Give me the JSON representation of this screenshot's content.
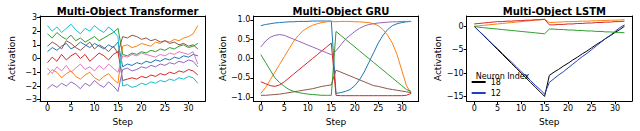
{
  "chart_data": [
    {
      "type": "line",
      "title": "Multi-Object Transformer",
      "x_label": "Step",
      "y_label": "Activation",
      "grid": false,
      "x": [
        0,
        1,
        2,
        3,
        4,
        5,
        6,
        7,
        8,
        9,
        10,
        11,
        12,
        13,
        14,
        15,
        16,
        17,
        18,
        19,
        20,
        21,
        22,
        23,
        24,
        25,
        26,
        27,
        28,
        29,
        30,
        31,
        32
      ],
      "xlim": [
        -1.6,
        33.6
      ],
      "xticks": [
        0,
        5,
        10,
        15,
        20,
        25,
        30
      ],
      "ylim": [
        -3.1,
        3.1
      ],
      "yticks": [
        {
          "value": -3,
          "label": "−3"
        },
        {
          "value": -2,
          "label": "−2"
        },
        {
          "value": -1,
          "label": "−1"
        },
        0,
        1,
        2,
        3
      ],
      "series": [
        {
          "color": "#1f77b4",
          "values": [
            0.5,
            0.8,
            0.6,
            0.9,
            1.1,
            0.7,
            0.9,
            1.2,
            1.0,
            0.8,
            1.1,
            0.9,
            0.7,
            1.0,
            0.8,
            1.2,
            -0.6,
            -0.4,
            -0.5,
            -0.3,
            -0.4,
            -0.2,
            -0.3,
            -0.1,
            -0.2,
            0.0,
            -0.1,
            0.1,
            0.0,
            0.2,
            0.1,
            0.3,
            0.2
          ]
        },
        {
          "color": "#ff7f0e",
          "values": [
            -1.2,
            -0.8,
            -1.0,
            -1.4,
            -1.1,
            -0.9,
            -1.3,
            -1.5,
            -1.2,
            -1.0,
            -1.4,
            -1.6,
            -1.3,
            -1.1,
            -1.5,
            -1.8,
            0.9,
            1.0,
            0.8,
            0.9,
            1.1,
            1.0,
            0.9,
            1.2,
            1.1,
            1.3,
            1.2,
            1.4,
            1.3,
            1.5,
            1.6,
            1.8,
            2.4
          ]
        },
        {
          "color": "#2ca02c",
          "values": [
            1.8,
            1.5,
            1.9,
            1.6,
            1.4,
            1.7,
            1.3,
            1.5,
            1.2,
            1.4,
            1.6,
            1.3,
            1.5,
            1.7,
            1.9,
            2.2,
            0.3,
            0.2,
            0.4,
            0.3,
            0.5,
            0.4,
            0.6,
            0.5,
            0.7,
            0.6,
            0.8,
            0.7,
            0.9,
            1.0,
            0.8,
            0.9,
            1.1
          ]
        },
        {
          "color": "#d62728",
          "values": [
            -0.3,
            0.1,
            -0.2,
            0.3,
            -0.1,
            0.2,
            0.4,
            0.0,
            0.3,
            -0.2,
            0.1,
            0.4,
            0.2,
            -0.1,
            0.3,
            0.5,
            -1.6,
            -1.5,
            -1.4,
            -1.5,
            -1.3,
            -1.4,
            -1.2,
            -1.3,
            -1.1,
            -1.2,
            -1.0,
            -1.1,
            -0.9,
            -1.0,
            -0.8,
            -0.9,
            -1.2
          ]
        },
        {
          "color": "#9467bd",
          "values": [
            -2.2,
            -1.9,
            -2.1,
            -1.8,
            -2.0,
            -1.7,
            -1.9,
            -2.2,
            -1.8,
            -2.0,
            -1.6,
            -1.9,
            -2.1,
            -1.7,
            -2.0,
            -2.4,
            -0.8,
            -0.7,
            -0.9,
            -0.8,
            -0.6,
            -0.7,
            -0.5,
            -0.6,
            -0.4,
            -0.5,
            -0.3,
            -0.4,
            -0.2,
            -0.3,
            -0.1,
            -0.2,
            -0.6
          ]
        },
        {
          "color": "#8c564b",
          "values": [
            0.9,
            1.2,
            1.0,
            0.7,
            1.3,
            1.1,
            0.8,
            0.6,
            0.9,
            1.2,
            0.7,
            1.0,
            0.8,
            0.5,
            0.9,
            0.4,
            1.6,
            1.5,
            1.7,
            1.6,
            1.4,
            1.5,
            1.3,
            1.4,
            1.2,
            1.3,
            1.1,
            1.2,
            1.0,
            1.1,
            0.9,
            1.0,
            0.7
          ]
        },
        {
          "color": "#e377c2",
          "values": [
            -0.7,
            -1.1,
            -0.6,
            -0.9,
            -0.5,
            -1.0,
            -0.7,
            -0.4,
            -0.8,
            -0.6,
            -0.9,
            -0.5,
            -0.8,
            -0.4,
            -0.7,
            -1.0,
            0.2,
            0.1,
            0.3,
            0.2,
            0.4,
            0.3,
            0.2,
            0.1,
            0.3,
            0.2,
            0.4,
            0.3,
            0.5,
            0.4,
            0.3,
            0.5,
            -0.4
          ]
        },
        {
          "color": "#17becf",
          "values": [
            2.4,
            2.0,
            2.3,
            1.9,
            2.2,
            2.5,
            2.1,
            1.8,
            2.2,
            2.0,
            2.4,
            2.1,
            1.9,
            2.3,
            2.0,
            1.6,
            -2.0,
            -1.9,
            -2.1,
            -2.0,
            -1.8,
            -1.9,
            -1.7,
            -1.8,
            -1.6,
            -1.7,
            -1.5,
            -1.6,
            -1.4,
            -1.5,
            -1.3,
            -1.4,
            -1.8
          ]
        }
      ]
    },
    {
      "type": "line",
      "title": "Multi-Object GRU",
      "x_label": "Step",
      "y_label": "Activation",
      "grid": false,
      "x": [
        0,
        1,
        2,
        3,
        4,
        5,
        6,
        7,
        8,
        9,
        10,
        11,
        12,
        13,
        14,
        15,
        16,
        17,
        18,
        19,
        20,
        21,
        22,
        23,
        24,
        25,
        26,
        27,
        28,
        29,
        30,
        31,
        32
      ],
      "xlim": [
        -1.6,
        33.6
      ],
      "xticks": [
        0,
        5,
        10,
        15,
        20,
        25,
        30
      ],
      "ylim": [
        -1.1,
        1.1
      ],
      "yticks": [
        {
          "value": -1,
          "label": "−1.0"
        },
        {
          "value": -0.5,
          "label": "−0.5"
        },
        {
          "value": 0,
          "label": "0.0"
        },
        {
          "value": 0.5,
          "label": "0.5"
        },
        {
          "value": 1,
          "label": "1.0"
        }
      ],
      "series": [
        {
          "color": "#1f77b4",
          "values": [
            0.85,
            0.88,
            0.9,
            0.92,
            0.93,
            0.94,
            0.95,
            0.95,
            0.96,
            0.96,
            0.96,
            0.97,
            0.97,
            0.97,
            0.97,
            0.97,
            -0.9,
            -0.88,
            -0.85,
            -0.8,
            -0.7,
            -0.55,
            -0.35,
            -0.1,
            0.15,
            0.4,
            0.6,
            0.75,
            0.85,
            0.9,
            0.93,
            0.95,
            0.96
          ]
        },
        {
          "color": "#ff7f0e",
          "values": [
            -0.9,
            -0.75,
            -0.55,
            -0.35,
            -0.15,
            0.05,
            0.25,
            0.45,
            0.6,
            0.72,
            0.8,
            0.86,
            0.9,
            0.93,
            0.95,
            0.96,
            0.95,
            0.96,
            0.96,
            0.96,
            0.95,
            0.95,
            0.94,
            0.93,
            0.9,
            0.85,
            0.75,
            0.6,
            0.4,
            0.1,
            -0.3,
            -0.7,
            -0.9
          ]
        },
        {
          "color": "#2ca02c",
          "values": [
            0.1,
            -0.1,
            -0.3,
            -0.5,
            -0.62,
            -0.72,
            -0.8,
            -0.85,
            -0.88,
            -0.9,
            -0.92,
            -0.93,
            -0.94,
            -0.95,
            -0.95,
            -0.95,
            0.7,
            0.6,
            0.5,
            0.4,
            0.3,
            0.2,
            0.1,
            0.0,
            -0.1,
            -0.2,
            -0.3,
            -0.4,
            -0.5,
            -0.6,
            -0.7,
            -0.8,
            -0.85
          ]
        },
        {
          "color": "#d62728",
          "values": [
            -0.6,
            -0.65,
            -0.7,
            -0.72,
            -0.68,
            -0.6,
            -0.5,
            -0.4,
            -0.3,
            -0.2,
            -0.1,
            0.0,
            0.1,
            0.2,
            0.3,
            0.4,
            -0.95,
            -0.96,
            -0.96,
            -0.96,
            -0.96,
            -0.96,
            -0.96,
            -0.96,
            -0.96,
            -0.96,
            -0.96,
            -0.96,
            -0.96,
            -0.96,
            -0.96,
            -0.95,
            -0.9
          ]
        },
        {
          "color": "#9467bd",
          "values": [
            0.3,
            0.45,
            0.55,
            0.6,
            0.62,
            0.6,
            0.55,
            0.5,
            0.45,
            0.4,
            0.35,
            0.3,
            0.25,
            0.2,
            0.15,
            0.1,
            0.2,
            0.35,
            0.5,
            0.6,
            0.7,
            0.78,
            0.84,
            0.88,
            0.9,
            0.92,
            0.93,
            0.94,
            0.95,
            0.95,
            0.96,
            0.96,
            0.96
          ]
        },
        {
          "color": "#8c564b",
          "values": [
            -0.95,
            -0.95,
            -0.94,
            -0.93,
            -0.92,
            -0.9,
            -0.88,
            -0.86,
            -0.84,
            -0.82,
            -0.8,
            -0.78,
            -0.75,
            -0.72,
            -0.7,
            -0.68,
            -0.3,
            -0.35,
            -0.4,
            -0.45,
            -0.5,
            -0.55,
            -0.6,
            -0.65,
            -0.7,
            -0.72,
            -0.75,
            -0.78,
            -0.8,
            -0.82,
            -0.84,
            -0.86,
            -0.88
          ]
        }
      ]
    },
    {
      "type": "line",
      "title": "Multi-Object LSTM",
      "x_label": "Step",
      "y_label": "Activation",
      "grid": false,
      "legend": "lower left",
      "legend_title": "Neuron Index",
      "x": [
        0,
        1,
        2,
        3,
        4,
        5,
        6,
        7,
        8,
        9,
        10,
        11,
        12,
        13,
        14,
        15,
        16,
        17,
        18,
        19,
        20,
        21,
        22,
        23,
        24,
        25,
        26,
        27,
        28,
        29,
        30,
        31,
        32
      ],
      "xlim": [
        -1.6,
        33.6
      ],
      "xticks": [
        0,
        5,
        10,
        15,
        20,
        25,
        30
      ],
      "ylim": [
        -16,
        2.2
      ],
      "yticks": [
        {
          "value": -15,
          "label": "−15"
        },
        {
          "value": -10,
          "label": "−10"
        },
        {
          "value": -5,
          "label": "−5"
        },
        0
      ],
      "series": [
        {
          "name": "18",
          "color": "#000000",
          "values": [
            0,
            -1,
            -2,
            -3,
            -4,
            -5,
            -6,
            -7,
            -8,
            -9,
            -10,
            -11,
            -12,
            -13,
            -14,
            -15,
            -10.5,
            -9.8,
            -9.2,
            -8.5,
            -7.9,
            -7.2,
            -6.6,
            -5.9,
            -5.3,
            -4.6,
            -3.9,
            -3.3,
            -2.6,
            -2.0,
            -1.3,
            -0.7,
            0.0
          ]
        },
        {
          "name": "12",
          "color": "#1f3fbf",
          "values": [
            0,
            -1,
            -1.9,
            -2.9,
            -3.9,
            -4.8,
            -5.8,
            -6.8,
            -7.7,
            -8.7,
            -9.7,
            -10.6,
            -11.6,
            -12.6,
            -13.5,
            -14.5,
            -12,
            -11.2,
            -10.4,
            -9.7,
            -8.9,
            -8.1,
            -7.3,
            -6.5,
            -5.8,
            -5.0,
            -4.2,
            -3.4,
            -2.6,
            -1.9,
            -1.1,
            -0.3,
            0.3
          ]
        },
        {
          "color": "#ff7f0e",
          "values": [
            0,
            0.1,
            0.2,
            0.3,
            0.4,
            0.5,
            0.6,
            0.7,
            0.8,
            0.9,
            1.0,
            1.1,
            1.2,
            1.3,
            1.4,
            1.5,
            0.8,
            0.85,
            0.9,
            0.95,
            1.0,
            1.0,
            1.05,
            1.1,
            1.1,
            1.15,
            1.2,
            1.2,
            1.25,
            1.3,
            1.3,
            1.35,
            1.4
          ]
        },
        {
          "color": "#2ca02c",
          "values": [
            0,
            -0.2,
            -0.3,
            -0.4,
            -0.5,
            -0.6,
            -0.7,
            -0.8,
            -0.9,
            -1.0,
            -1.1,
            -1.2,
            -1.3,
            -1.4,
            -1.5,
            -1.6,
            -0.6,
            -0.6,
            -0.7,
            -0.7,
            -0.8,
            -0.8,
            -0.9,
            -0.9,
            -1.0,
            -1.0,
            -1.1,
            -1.1,
            -1.2,
            -1.2,
            -1.3,
            -1.3,
            -1.4
          ]
        },
        {
          "color": "#d62728",
          "values": [
            0.5,
            0.6,
            0.7,
            0.8,
            0.9,
            1.0,
            1.0,
            1.1,
            1.1,
            1.2,
            1.2,
            1.3,
            1.3,
            1.4,
            1.4,
            1.5,
            0.3,
            0.3,
            0.4,
            0.4,
            0.5,
            0.5,
            0.6,
            0.6,
            0.7,
            0.7,
            0.8,
            0.8,
            0.9,
            0.9,
            1.0,
            1.0,
            1.1
          ]
        }
      ]
    }
  ]
}
